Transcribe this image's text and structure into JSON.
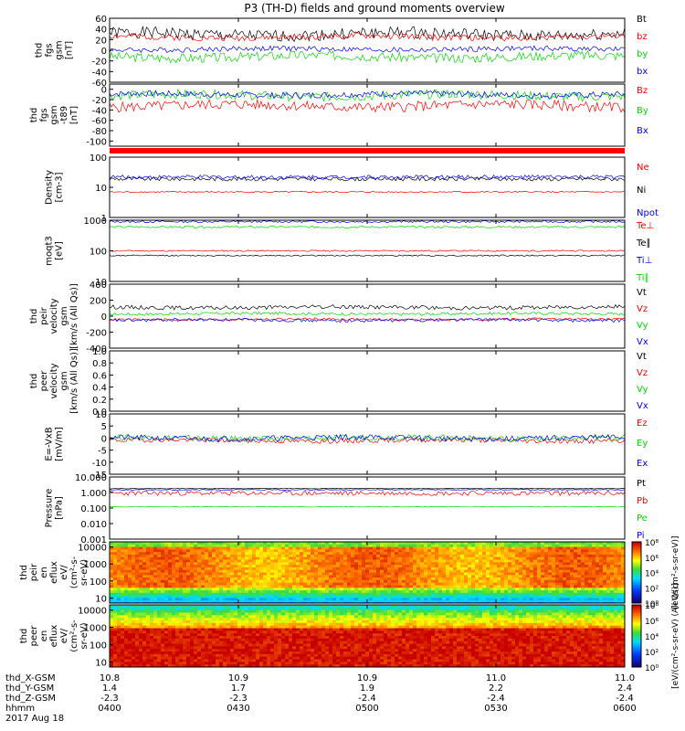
{
  "title": "P3 (TH-D) fields and ground moments overview",
  "chart_data": {
    "type": "line",
    "title": "P3 (TH-D) fields and ground moments overview",
    "x": {
      "tick_times": [
        "0400",
        "0430",
        "0500",
        "0530",
        "0600"
      ],
      "xlim": [
        "2017-08-18 04:00",
        "2017-08-18 06:00"
      ],
      "date_label": "2017 Aug 18",
      "ephemeris": [
        {
          "name": "thd_X-GSM",
          "values": [
            "10.8",
            "10.9",
            "10.9",
            "11.0",
            "11.0"
          ]
        },
        {
          "name": "thd_Y-GSM",
          "values": [
            "1.4",
            "1.7",
            "1.9",
            "2.2",
            "2.4"
          ]
        },
        {
          "name": "thd_Z-GSM",
          "values": [
            "-2.3",
            "-2.3",
            "-2.4",
            "-2.4",
            "-2.4"
          ]
        },
        {
          "name": "hhmm",
          "values": [
            "0400",
            "0430",
            "0500",
            "0530",
            "0600"
          ]
        }
      ]
    },
    "panels": [
      {
        "id": "fgs",
        "type": "line",
        "ylabel": [
          "thd",
          "fgs",
          "gsm",
          "[nT]"
        ],
        "ylim": [
          -60,
          60
        ],
        "yticks": [
          "60",
          "40",
          "20",
          "0",
          "-20",
          "-40",
          "-60"
        ],
        "series": [
          {
            "name": "Bt",
            "color": "#000000",
            "base": 30,
            "amp": 11,
            "seed": 1
          },
          {
            "name": "bz",
            "color": "#ff0000",
            "base": 25,
            "amp": 6,
            "seed": 2
          },
          {
            "name": "by",
            "color": "#00dd00",
            "base": -12,
            "amp": 9,
            "seed": 3
          },
          {
            "name": "bx",
            "color": "#0000ff",
            "base": 2,
            "amp": 5,
            "seed": 4
          }
        ]
      },
      {
        "id": "fgs_t89",
        "type": "line",
        "ylabel": [
          "thd",
          "fgs",
          "gsm",
          "-t89",
          "[nT]"
        ],
        "ylim": [
          -110,
          10
        ],
        "yticks": [
          "0",
          "-20",
          "-40",
          "-60",
          "-80",
          "-100"
        ],
        "series": [
          {
            "name": "Bz",
            "color": "#ff0000",
            "base": -32,
            "amp": 10,
            "seed": 5
          },
          {
            "name": "By",
            "color": "#00dd00",
            "base": -12,
            "amp": 9,
            "seed": 6
          },
          {
            "name": "Bx",
            "color": "#0000ff",
            "base": -10,
            "amp": 6,
            "seed": 7
          }
        ]
      },
      {
        "id": "density",
        "type": "line",
        "ylabel": [
          "Density",
          "[cm-3]"
        ],
        "log": true,
        "ylim": [
          1,
          100
        ],
        "yticks": [
          "100",
          "10",
          "1"
        ],
        "series": [
          {
            "name": "Ne",
            "color": "#ff0000",
            "base": 7,
            "amp": 0.05,
            "seed": 8
          },
          {
            "name": "Ni",
            "color": "#000000",
            "base": 19,
            "amp": 0.15,
            "seed": 9
          },
          {
            "name": "Npot",
            "color": "#0000ff",
            "base": 22,
            "amp": 0.15,
            "seed": 10
          }
        ]
      },
      {
        "id": "temp",
        "type": "line",
        "ylabel": [
          "moqt3",
          "[eV]"
        ],
        "log": true,
        "ylim": [
          10,
          1000
        ],
        "yticks": [
          "1000",
          "100",
          "10"
        ],
        "series": [
          {
            "name": "Te⊥",
            "color": "#ff0000",
            "base": 100,
            "amp": 0.05,
            "seed": 11
          },
          {
            "name": "Te∥",
            "color": "#000000",
            "base": 70,
            "amp": 0.05,
            "seed": 12
          },
          {
            "name": "Ti⊥",
            "color": "#0000ff",
            "base": 900,
            "amp": 0.08,
            "seed": 13
          },
          {
            "name": "Ti∥",
            "color": "#00dd00",
            "base": 600,
            "amp": 0.08,
            "seed": 14
          }
        ]
      },
      {
        "id": "peir_vel",
        "type": "line",
        "ylabel": [
          "thd",
          "peir",
          "velocity",
          "gsm",
          "[km/s (All Qs)]"
        ],
        "ylim": [
          -400,
          400
        ],
        "yticks": [
          "400",
          "200",
          "0",
          "-200",
          "-400"
        ],
        "series": [
          {
            "name": "Vt",
            "color": "#000000",
            "base": 110,
            "amp": 25,
            "seed": 15
          },
          {
            "name": "Vz",
            "color": "#ff0000",
            "base": -40,
            "amp": 15,
            "seed": 16
          },
          {
            "name": "Vy",
            "color": "#00dd00",
            "base": 30,
            "amp": 18,
            "seed": 17
          },
          {
            "name": "Vx",
            "color": "#0000ff",
            "base": -50,
            "amp": 20,
            "seed": 18
          }
        ]
      },
      {
        "id": "peer_vel",
        "type": "empty",
        "ylabel": [
          "thd",
          "peer",
          "velocity",
          "gsm",
          "[km/s (All Qs)]"
        ],
        "ylim": [
          0,
          1
        ],
        "yticks": [
          "1.0",
          "0.8",
          "0.6",
          "0.4",
          "0.2",
          "0.0"
        ],
        "series": [
          {
            "name": "Vt",
            "color": "#000000"
          },
          {
            "name": "Vz",
            "color": "#ff0000"
          },
          {
            "name": "Vy",
            "color": "#00dd00"
          },
          {
            "name": "Vx",
            "color": "#0000ff"
          }
        ]
      },
      {
        "id": "efield",
        "type": "line",
        "ylabel": [
          "E=-VxB",
          "[mV/m]"
        ],
        "ylim": [
          -15,
          10
        ],
        "yticks": [
          "10",
          "5",
          "0",
          "-5",
          "-10",
          "-15"
        ],
        "series": [
          {
            "name": "Ez",
            "color": "#ff0000",
            "base": -1,
            "amp": 1,
            "seed": 19
          },
          {
            "name": "Ey",
            "color": "#00dd00",
            "base": 0,
            "amp": 1.2,
            "seed": 20
          },
          {
            "name": "Ex",
            "color": "#0000ff",
            "base": 0,
            "amp": 1.2,
            "seed": 21
          }
        ]
      },
      {
        "id": "pressure",
        "type": "line",
        "ylabel": [
          "Pressure",
          "[nPa]"
        ],
        "log": true,
        "ylim": [
          0.001,
          10
        ],
        "yticks": [
          "10.000",
          "1.000",
          "0.100",
          "0.010",
          "0.001"
        ],
        "series": [
          {
            "name": "Pt",
            "color": "#000000",
            "base": 1.8,
            "amp": 0.05,
            "seed": 22
          },
          {
            "name": "Pb",
            "color": "#ff0000",
            "base": 0.9,
            "amp": 0.35,
            "seed": 23
          },
          {
            "name": "Pe",
            "color": "#00dd00",
            "base": 0.12,
            "amp": 0.04,
            "seed": 24
          },
          {
            "name": "Pi",
            "color": "#0000ff",
            "base": 1.5,
            "amp": 0.06,
            "seed": 25
          }
        ]
      },
      {
        "id": "peir_spec",
        "type": "heatmap",
        "ylabel": [
          "thd",
          "peir",
          "en",
          "eflux",
          "eV/",
          "(cm²-s-",
          "sr-eV)"
        ],
        "log": true,
        "ylim": [
          5,
          20000
        ],
        "yticks": [
          "10000",
          "1000",
          "100",
          "10"
        ],
        "colorbar": {
          "label": "[eV/(cm²-s-sr-eV)]",
          "ticks": [
            "10⁸",
            "10⁶",
            "10⁴",
            "10²",
            "10⁰"
          ]
        }
      },
      {
        "id": "peer_spec",
        "type": "heatmap",
        "ylabel": [
          "thd",
          "peer",
          "en",
          "eflux",
          "eV/",
          "(cm²-s-",
          "sr-eV)"
        ],
        "log": true,
        "ylim": [
          5,
          20000
        ],
        "yticks": [
          "10000",
          "1000",
          "100",
          "10"
        ],
        "colorbar": {
          "label": "[eV/(cm²-s-sr-eV) (All Qs)]",
          "ticks": [
            "10⁸",
            "10⁶",
            "10⁴",
            "10²",
            "10⁰"
          ]
        }
      }
    ],
    "colors": {
      "black": "#000000",
      "red": "#ff0000",
      "green": "#00dd00",
      "blue": "#0000ff"
    }
  }
}
